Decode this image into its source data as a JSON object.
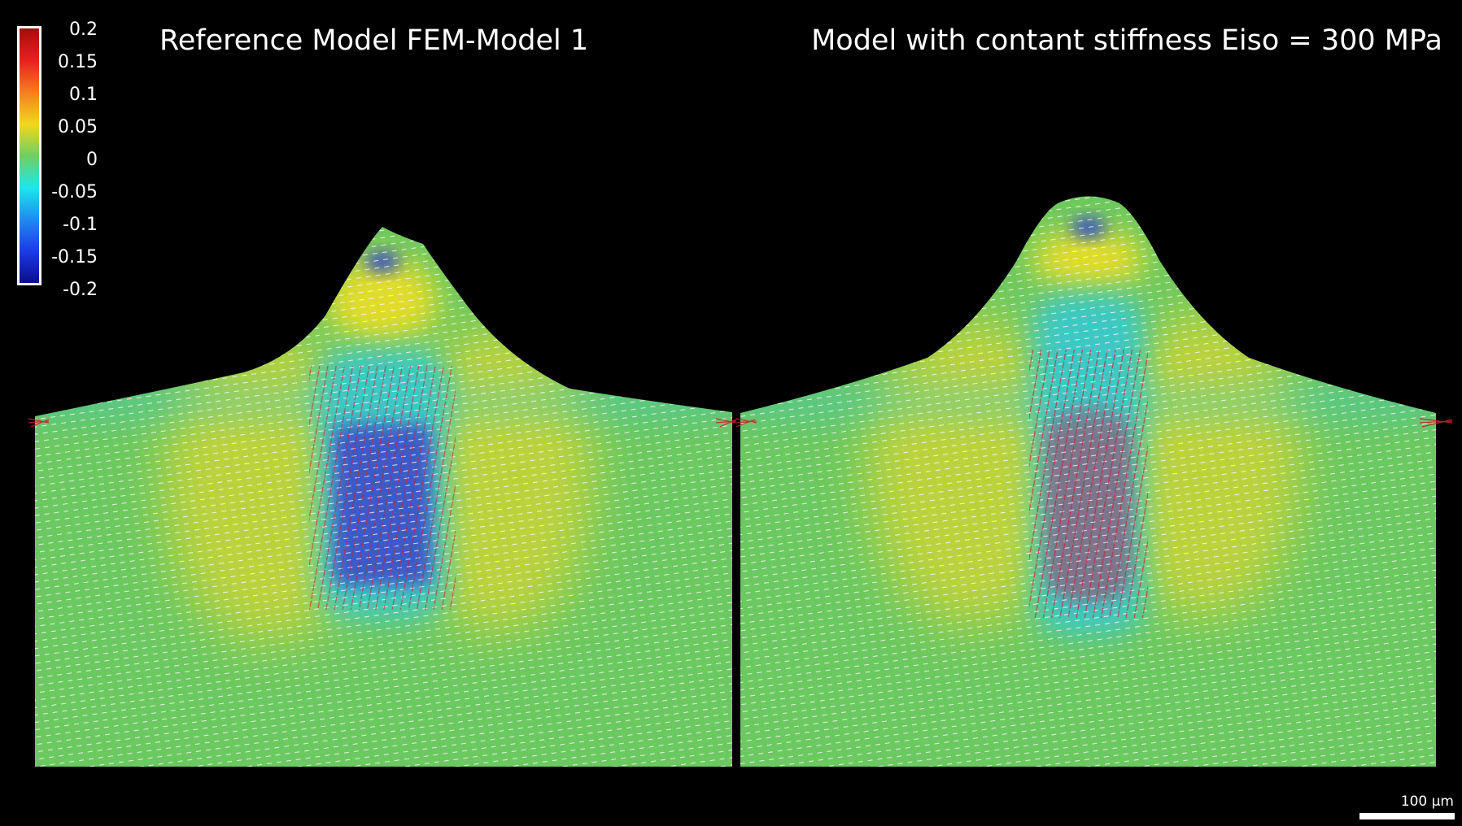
{
  "panels": [
    {
      "title": "Reference Model FEM-Model 1"
    },
    {
      "title": "Model with contant stiffness Eiso = 300 MPa"
    }
  ],
  "colorbar": {
    "ticks": [
      "0.2",
      "0.15",
      "0.1",
      "0.05",
      "0",
      "-0.05",
      "-0.1",
      "-0.15",
      "-0.2"
    ],
    "colors": [
      "#a50c0c",
      "#e8201e",
      "#f77d1e",
      "#f2d61e",
      "#6fd05f",
      "#1ee6ec",
      "#1e8cf0",
      "#1c3ae6",
      "#0c0c8c"
    ]
  },
  "scale_bar": {
    "label": "100 µm"
  },
  "colors": {
    "background": "#000000",
    "field_base": "#6cc860",
    "field_yellow": "#bcd23c",
    "field_cyan": "#3cc8c4",
    "field_blue": "#3c5ac8",
    "vector_white": "#ffffff",
    "vector_red": "#c8202a"
  }
}
